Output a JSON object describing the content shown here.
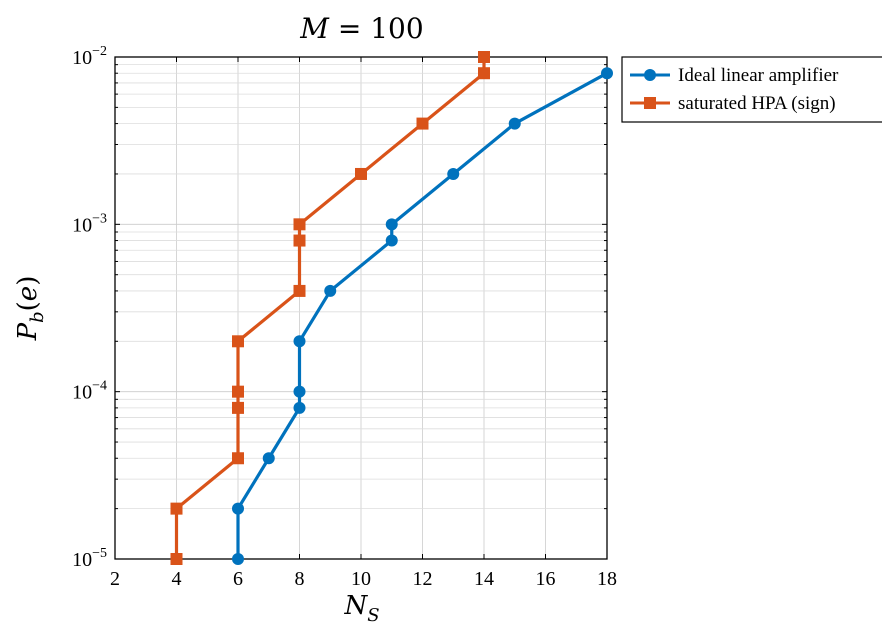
{
  "chart_data": {
    "type": "line",
    "title": "M = 100",
    "xlabel": "N_S",
    "ylabel": "P_b(e)",
    "x_scale": "linear",
    "y_scale": "log",
    "xlim": [
      2,
      18
    ],
    "ylim": [
      1e-05,
      0.01
    ],
    "x_ticks": [
      2,
      4,
      6,
      8,
      10,
      12,
      14,
      16,
      18
    ],
    "x_tick_labels": [
      "2",
      "4",
      "6",
      "8",
      "10",
      "12",
      "14",
      "16",
      "18"
    ],
    "y_ticks": [
      1e-05,
      0.0001,
      0.001,
      0.01
    ],
    "y_tick_labels": [
      "10^-5",
      "10^-4",
      "10^-3",
      "10^-2"
    ],
    "grid": true,
    "legend_position": "outside-top-right",
    "series": [
      {
        "name": "Ideal linear amplifier",
        "color": "#0072bd",
        "marker": "circle",
        "x": [
          6,
          6,
          7,
          8,
          8,
          8,
          9,
          11,
          11,
          13,
          15,
          18
        ],
        "y": [
          1e-05,
          2e-05,
          4e-05,
          8e-05,
          0.0001,
          0.0002,
          0.0004,
          0.0008,
          0.001,
          0.002,
          0.004,
          0.008
        ]
      },
      {
        "name": "saturated HPA (sign)",
        "color": "#d95319",
        "marker": "square",
        "x": [
          4,
          4,
          6,
          6,
          6,
          6,
          8,
          8,
          8,
          10,
          12,
          14,
          14
        ],
        "y": [
          1e-05,
          2e-05,
          4e-05,
          8e-05,
          0.0001,
          0.0002,
          0.0004,
          0.0008,
          0.001,
          0.002,
          0.004,
          0.008,
          0.01
        ]
      }
    ]
  }
}
